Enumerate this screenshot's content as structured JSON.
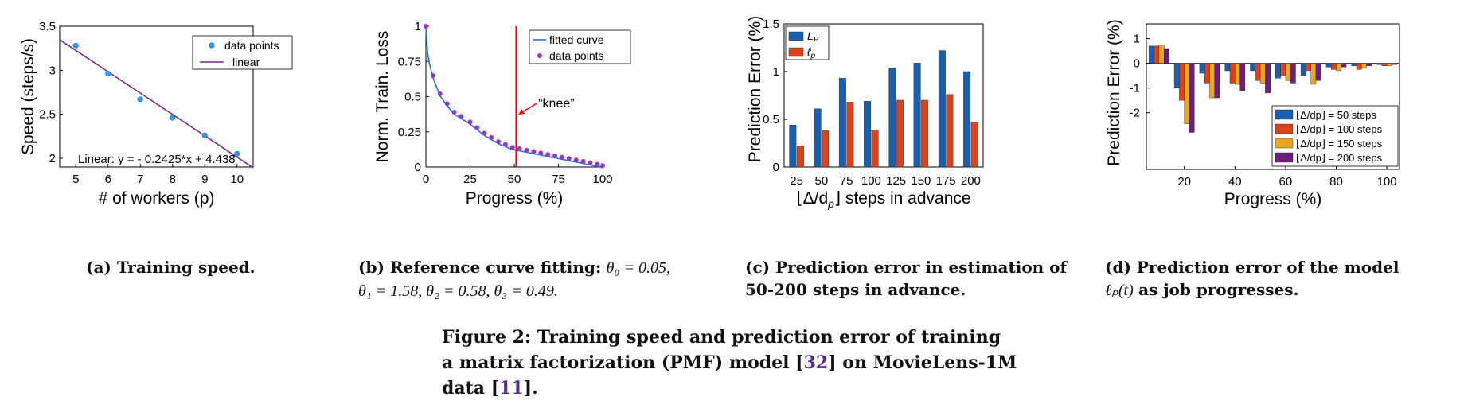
{
  "chart_data": [
    {
      "type": "scatter",
      "panel": "a",
      "xlabel": "# of workers (p)",
      "ylabel": "Speed (steps/s)",
      "xlim": [
        4.5,
        10.5
      ],
      "ylim": [
        1.9,
        3.5
      ],
      "xticks": [
        5,
        6,
        7,
        8,
        9,
        10
      ],
      "yticks": [
        2,
        2.5,
        3,
        3.5
      ],
      "ytick_labels": [
        "2",
        "2.5",
        "3",
        "3.5"
      ],
      "series": [
        {
          "name": "data points",
          "x": [
            5,
            6,
            7,
            8,
            9,
            10
          ],
          "y": [
            3.28,
            2.96,
            2.67,
            2.46,
            2.26,
            2.05
          ]
        },
        {
          "name": "linear",
          "slope": -0.2425,
          "intercept": 4.438
        }
      ],
      "annotation": "Linear:  y = - 0.2425*x + 4.438",
      "legend_position": "top-right"
    },
    {
      "type": "line",
      "panel": "b",
      "xlabel": "Progress (%)",
      "ylabel": "Norm. Train. Loss",
      "xlim": [
        0,
        100
      ],
      "ylim": [
        0,
        1
      ],
      "xticks": [
        0,
        25,
        50,
        75,
        100
      ],
      "yticks": [
        0,
        0.25,
        0.5,
        0.75,
        1
      ],
      "ytick_labels": [
        "0",
        "0.25",
        "0.5",
        "0.75",
        "1"
      ],
      "theta": [
        0.05,
        1.58,
        0.58,
        0.49
      ],
      "series": [
        {
          "name": "fitted curve"
        },
        {
          "name": "data points",
          "x": [
            0,
            4,
            8,
            12,
            16,
            20,
            25,
            29,
            33,
            37,
            41,
            45,
            49,
            53,
            57,
            61,
            65,
            69,
            73,
            77,
            81,
            85,
            89,
            93,
            97,
            100
          ],
          "y": [
            1.0,
            0.65,
            0.52,
            0.45,
            0.39,
            0.36,
            0.32,
            0.28,
            0.24,
            0.21,
            0.18,
            0.16,
            0.14,
            0.13,
            0.12,
            0.11,
            0.1,
            0.09,
            0.08,
            0.07,
            0.06,
            0.05,
            0.04,
            0.03,
            0.02,
            0.01
          ]
        }
      ],
      "knee_x": 51,
      "knee_label": "“knee”",
      "legend_position": "top-right"
    },
    {
      "type": "bar",
      "panel": "c",
      "xlabel": "⌊Δ/d",
      "xlabel_sub": "p",
      "xlabel_rest": "⌋ steps in advance",
      "ylabel": "Prediction Error (%)",
      "ylim": [
        0,
        1.5
      ],
      "yticks": [
        0,
        0.5,
        1,
        1.5
      ],
      "ytick_labels": [
        "0",
        "0.5",
        "1",
        "1.5"
      ],
      "categories": [
        "25",
        "50",
        "75",
        "100",
        "125",
        "150",
        "175",
        "200"
      ],
      "series": [
        {
          "name": "L",
          "sub": "P",
          "values": [
            0.44,
            0.61,
            0.93,
            0.69,
            1.04,
            1.09,
            1.22,
            1.0
          ]
        },
        {
          "name": "ℓ",
          "sub": "p",
          "values": [
            0.22,
            0.38,
            0.68,
            0.39,
            0.7,
            0.7,
            0.76,
            0.47
          ]
        }
      ],
      "legend_position": "top-left"
    },
    {
      "type": "bar",
      "panel": "d",
      "xlabel": "Progress (%)",
      "ylabel": "Prediction Error (%)",
      "ylim": [
        -4.3,
        1.6
      ],
      "yticks": [
        1,
        0,
        -1,
        -2
      ],
      "ytick_labels": [
        "1",
        "0",
        "-1",
        "-2"
      ],
      "categories": [
        "10",
        "20",
        "30",
        "40",
        "50",
        "60",
        "70",
        "80",
        "90",
        "100"
      ],
      "xtick_labels": [
        "",
        "20",
        "",
        "40",
        "",
        "60",
        "",
        "80",
        "",
        "100"
      ],
      "series": [
        {
          "name": "⌊Δ/dp⌋ = 50 steps",
          "values": [
            0.7,
            -1.0,
            -0.4,
            -0.3,
            -0.3,
            -0.6,
            -0.5,
            -0.15,
            -0.1,
            -0.05
          ]
        },
        {
          "name": "⌊Δ/dp⌋ = 100 steps",
          "values": [
            0.7,
            -1.5,
            -0.8,
            -0.8,
            -0.7,
            -0.5,
            -0.3,
            -0.25,
            -0.25,
            -0.1
          ]
        },
        {
          "name": "⌊Δ/dp⌋ = 150 steps",
          "values": [
            0.75,
            -2.45,
            -1.4,
            -0.85,
            -0.8,
            -0.7,
            -0.85,
            -0.3,
            -0.2,
            -0.1
          ]
        },
        {
          "name": "⌊Δ/dp⌋ = 200 steps",
          "values": [
            0.6,
            -2.8,
            -1.4,
            -1.1,
            -1.2,
            -0.8,
            -0.7,
            -0.15,
            -0.1,
            -0.05
          ]
        }
      ],
      "legend_position": "bottom-right"
    }
  ],
  "captions": {
    "a": {
      "label": "(a) Training speed."
    },
    "b": {
      "label": "(b) Reference curve fitting:",
      "t0": "θ₀ = 0.05,",
      "t123": "θ₁ = 1.58, θ₂ = 0.58, θ₃ = 0.49."
    },
    "c": {
      "label": "(c) Prediction error in estimation of",
      "label2": "50-200 steps in advance."
    },
    "d": {
      "label": "(d) Prediction error of the model",
      "math": "ℓₚ(t)",
      "label2": "as job progresses."
    }
  },
  "figure_caption": {
    "part1": "Figure 2: Training speed and prediction error of training",
    "part2": "a matrix factorization (PMF) model [",
    "ref1": "32",
    "part3": "] on MovieLens-1M",
    "part4": "data [",
    "ref2": "11",
    "part5": "]."
  },
  "colors": {
    "axis": "#000000",
    "scatter_fill": "#2a9df4",
    "linear": "#7b2d8e",
    "fit_curve": "#1f77d0",
    "dots_purple": "#9a35c8",
    "knee_red": "#ff0000",
    "bar_blue": "#1a5eb0",
    "bar_red": "#d9441c",
    "bar_orange": "#e8a623",
    "bar_purple": "#6c1f80",
    "ref": "#5b2a86"
  }
}
